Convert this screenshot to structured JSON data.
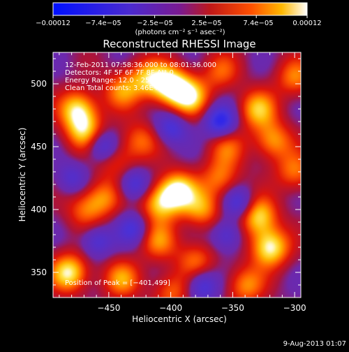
{
  "colorbar": {
    "tick_labels": [
      "−0.00012",
      "−7.4e−05",
      "−2.5e−05",
      "2.5e−05",
      "7.4e−05",
      "0.00012"
    ],
    "unit_label": "(photons cm⁻² s⁻¹ asec⁻²)",
    "range": [
      -0.00012,
      0.00012
    ],
    "colors": [
      "#0010ff",
      "#5a1aa0",
      "#c01818",
      "#ff4000",
      "#ffb000",
      "#ffffff"
    ]
  },
  "chart_data": {
    "type": "heatmap",
    "title": "Reconstructed RHESSI Image",
    "xlabel": "Heliocentric X (arcsec)",
    "ylabel": "Heliocentric Y (arcsec)",
    "xlim": [
      -495,
      -295
    ],
    "ylim": [
      330,
      525
    ],
    "x_ticks": [
      -450,
      -400,
      -350,
      -300
    ],
    "y_ticks": [
      350,
      400,
      450,
      500
    ],
    "x_tick_labels": [
      "−450",
      "−400",
      "−350",
      "−300"
    ],
    "y_tick_labels": [
      "350",
      "400",
      "450",
      "500"
    ],
    "annotations": [
      "12-Feb-2011 07:58:36.000 to 08:01:36.000",
      "Detectors: 4F 5F 6F 7F 8F  Att 0",
      "Energy Range: 12.0 - 25.0 keV",
      "Clean     Total counts: 3.46E+03"
    ],
    "peak_label": "Position of Peak = [−401,499]",
    "peak": [
      -401,
      499
    ],
    "sources": [
      {
        "x": -475,
        "y": 480,
        "v": 0.85
      },
      {
        "x": -470,
        "y": 462,
        "v": 0.7
      },
      {
        "x": -440,
        "y": 495,
        "v": 0.55
      },
      {
        "x": -420,
        "y": 505,
        "v": 0.6
      },
      {
        "x": -401,
        "y": 499,
        "v": 1.0
      },
      {
        "x": -385,
        "y": 490,
        "v": 0.8
      },
      {
        "x": -395,
        "y": 415,
        "v": 0.95
      },
      {
        "x": -410,
        "y": 405,
        "v": 0.7
      },
      {
        "x": -375,
        "y": 400,
        "v": 0.6
      },
      {
        "x": -360,
        "y": 425,
        "v": 0.55
      },
      {
        "x": -455,
        "y": 410,
        "v": 0.55
      },
      {
        "x": -470,
        "y": 400,
        "v": 0.45
      },
      {
        "x": -330,
        "y": 480,
        "v": 0.7
      },
      {
        "x": -318,
        "y": 455,
        "v": 0.65
      },
      {
        "x": -330,
        "y": 395,
        "v": 0.85
      },
      {
        "x": -320,
        "y": 370,
        "v": 0.95
      },
      {
        "x": -340,
        "y": 340,
        "v": 0.6
      },
      {
        "x": -482,
        "y": 350,
        "v": 0.9
      },
      {
        "x": -440,
        "y": 345,
        "v": 0.6
      },
      {
        "x": -410,
        "y": 375,
        "v": 0.55
      },
      {
        "x": -380,
        "y": 360,
        "v": 0.5
      },
      {
        "x": -300,
        "y": 505,
        "v": 0.55
      },
      {
        "x": -300,
        "y": 430,
        "v": 0.55
      },
      {
        "x": -355,
        "y": 450,
        "v": 0.45
      },
      {
        "x": -445,
        "y": 440,
        "v": 0.45
      },
      {
        "x": -425,
        "y": 455,
        "v": 0.5
      },
      {
        "x": -360,
        "y": 510,
        "v": 0.45
      },
      {
        "x": -400,
        "y": 335,
        "v": 0.5
      }
    ],
    "sinks": [
      {
        "x": -455,
        "y": 450,
        "v": 0.7
      },
      {
        "x": -360,
        "y": 470,
        "v": 0.8
      },
      {
        "x": -430,
        "y": 420,
        "v": 0.6
      },
      {
        "x": -345,
        "y": 405,
        "v": 0.6
      },
      {
        "x": -460,
        "y": 375,
        "v": 0.5
      },
      {
        "x": -375,
        "y": 340,
        "v": 0.6
      },
      {
        "x": -430,
        "y": 385,
        "v": 0.5
      },
      {
        "x": -400,
        "y": 465,
        "v": 0.55
      },
      {
        "x": -355,
        "y": 380,
        "v": 0.5
      },
      {
        "x": -480,
        "y": 425,
        "v": 0.4
      }
    ]
  },
  "footer": {
    "date": "9-Aug-2013 01:07"
  }
}
